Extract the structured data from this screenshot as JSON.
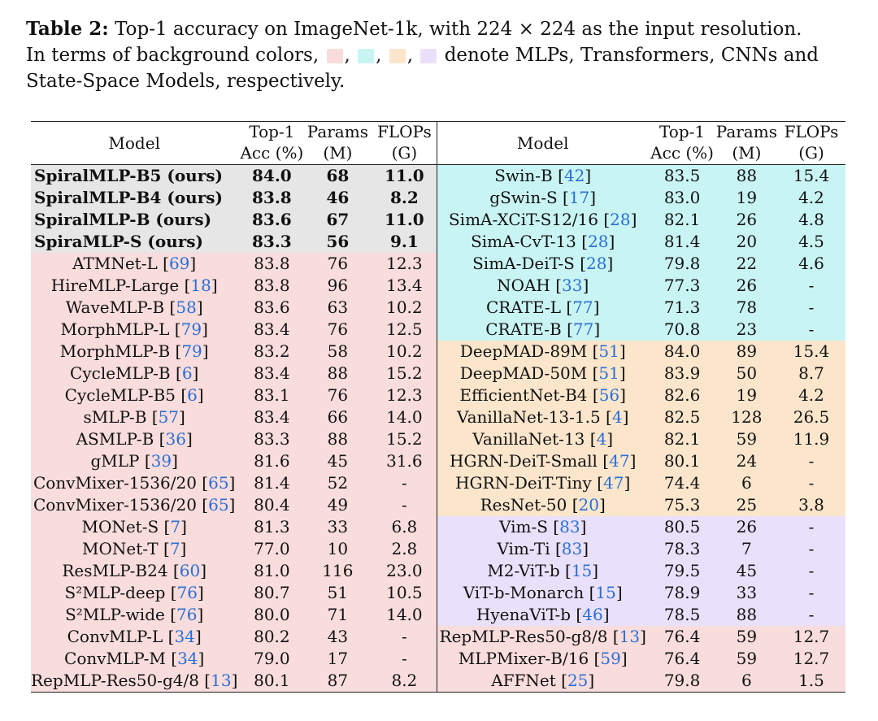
{
  "caption": {
    "label": "Table 2:",
    "line1": "Top-1 accuracy on ImageNet-1k, with 224 × 224 as the input resolution.",
    "line2a": "In terms of background colors,",
    "sep": ",",
    "line2b": "denote MLPs, Transformers, CNNs and",
    "line3": "State-Space Models, respectively."
  },
  "colors": {
    "mlp": "#f9dcdc",
    "transformer": "#c9f4f4",
    "cnn": "#fbe6cc",
    "ssm": "#e9e0fb",
    "ours": "#e6e6e6",
    "reference": "#2a6fd6"
  },
  "headers": {
    "model": "Model",
    "acc_top": "Top-1",
    "acc_bottom": "Acc (%)",
    "params_top": "Params",
    "params_bottom": "(M)",
    "flops_top": "FLOPs",
    "flops_bottom": "(G)"
  },
  "left_rows": [
    {
      "model": "SpiralMLP-B5 (ours)",
      "ref": "",
      "acc": "84.0",
      "params": "68",
      "flops": "11.0",
      "group": "ours"
    },
    {
      "model": "SpiralMLP-B4 (ours)",
      "ref": "",
      "acc": "83.8",
      "params": "46",
      "flops": "8.2",
      "group": "ours"
    },
    {
      "model": "SpiralMLP-B (ours)",
      "ref": "",
      "acc": "83.6",
      "params": "67",
      "flops": "11.0",
      "group": "ours"
    },
    {
      "model": "SpiraMLP-S (ours)",
      "ref": "",
      "acc": "83.3",
      "params": "56",
      "flops": "9.1",
      "group": "ours"
    },
    {
      "model": "ATMNet-L",
      "ref": "69",
      "acc": "83.8",
      "params": "76",
      "flops": "12.3",
      "group": "mlp"
    },
    {
      "model": "HireMLP-Large",
      "ref": "18",
      "acc": "83.8",
      "params": "96",
      "flops": "13.4",
      "group": "mlp"
    },
    {
      "model": "WaveMLP-B",
      "ref": "58",
      "acc": "83.6",
      "params": "63",
      "flops": "10.2",
      "group": "mlp"
    },
    {
      "model": "MorphMLP-L",
      "ref": "79",
      "acc": "83.4",
      "params": "76",
      "flops": "12.5",
      "group": "mlp"
    },
    {
      "model": "MorphMLP-B",
      "ref": "79",
      "acc": "83.2",
      "params": "58",
      "flops": "10.2",
      "group": "mlp"
    },
    {
      "model": "CycleMLP-B",
      "ref": "6",
      "acc": "83.4",
      "params": "88",
      "flops": "15.2",
      "group": "mlp"
    },
    {
      "model": "CycleMLP-B5",
      "ref": "6",
      "acc": "83.1",
      "params": "76",
      "flops": "12.3",
      "group": "mlp"
    },
    {
      "model": "sMLP-B",
      "ref": "57",
      "acc": "83.4",
      "params": "66",
      "flops": "14.0",
      "group": "mlp"
    },
    {
      "model": "ASMLP-B",
      "ref": "36",
      "acc": "83.3",
      "params": "88",
      "flops": "15.2",
      "group": "mlp"
    },
    {
      "model": "gMLP",
      "ref": "39",
      "acc": "81.6",
      "params": "45",
      "flops": "31.6",
      "group": "mlp"
    },
    {
      "model": "ConvMixer-1536/20",
      "ref": "65",
      "acc": "81.4",
      "params": "52",
      "flops": "-",
      "group": "mlp"
    },
    {
      "model": "ConvMixer-1536/20",
      "ref": "65",
      "acc": "80.4",
      "params": "49",
      "flops": "-",
      "group": "mlp"
    },
    {
      "model": "MONet-S",
      "ref": "7",
      "acc": "81.3",
      "params": "33",
      "flops": "6.8",
      "group": "mlp"
    },
    {
      "model": "MONet-T",
      "ref": "7",
      "acc": "77.0",
      "params": "10",
      "flops": "2.8",
      "group": "mlp"
    },
    {
      "model": "ResMLP-B24",
      "ref": "60",
      "acc": "81.0",
      "params": "116",
      "flops": "23.0",
      "group": "mlp"
    },
    {
      "model": "S²MLP-deep",
      "ref": "76",
      "acc": "80.7",
      "params": "51",
      "flops": "10.5",
      "group": "mlp"
    },
    {
      "model": "S²MLP-wide",
      "ref": "76",
      "acc": "80.0",
      "params": "71",
      "flops": "14.0",
      "group": "mlp"
    },
    {
      "model": "ConvMLP-L",
      "ref": "34",
      "acc": "80.2",
      "params": "43",
      "flops": "-",
      "group": "mlp"
    },
    {
      "model": "ConvMLP-M",
      "ref": "34",
      "acc": "79.0",
      "params": "17",
      "flops": "-",
      "group": "mlp"
    },
    {
      "model": "RepMLP-Res50-g4/8",
      "ref": "13",
      "acc": "80.1",
      "params": "87",
      "flops": "8.2",
      "group": "mlp"
    }
  ],
  "right_rows": [
    {
      "model": "Swin-B",
      "ref": "42",
      "acc": "83.5",
      "params": "88",
      "flops": "15.4",
      "group": "tr"
    },
    {
      "model": "gSwin-S",
      "ref": "17",
      "acc": "83.0",
      "params": "19",
      "flops": "4.2",
      "group": "tr"
    },
    {
      "model": "SimA-XCiT-S12/16",
      "ref": "28",
      "acc": "82.1",
      "params": "26",
      "flops": "4.8",
      "group": "tr"
    },
    {
      "model": "SimA-CvT-13",
      "ref": "28",
      "acc": "81.4",
      "params": "20",
      "flops": "4.5",
      "group": "tr"
    },
    {
      "model": "SimA-DeiT-S",
      "ref": "28",
      "acc": "79.8",
      "params": "22",
      "flops": "4.6",
      "group": "tr"
    },
    {
      "model": "NOAH",
      "ref": "33",
      "acc": "77.3",
      "params": "26",
      "flops": "-",
      "group": "tr"
    },
    {
      "model": "CRATE-L",
      "ref": "77",
      "acc": "71.3",
      "params": "78",
      "flops": "-",
      "group": "tr"
    },
    {
      "model": "CRATE-B",
      "ref": "77",
      "acc": "70.8",
      "params": "23",
      "flops": "-",
      "group": "tr"
    },
    {
      "model": "DeepMAD-89M",
      "ref": "51",
      "acc": "84.0",
      "params": "89",
      "flops": "15.4",
      "group": "cnn"
    },
    {
      "model": "DeepMAD-50M",
      "ref": "51",
      "acc": "83.9",
      "params": "50",
      "flops": "8.7",
      "group": "cnn"
    },
    {
      "model": "EfficientNet-B4",
      "ref": "56",
      "acc": "82.6",
      "params": "19",
      "flops": "4.2",
      "group": "cnn"
    },
    {
      "model": "VanillaNet-13-1.5",
      "ref": "4",
      "acc": "82.5",
      "params": "128",
      "flops": "26.5",
      "group": "cnn"
    },
    {
      "model": "VanillaNet-13",
      "ref": "4",
      "acc": "82.1",
      "params": "59",
      "flops": "11.9",
      "group": "cnn"
    },
    {
      "model": "HGRN-DeiT-Small",
      "ref": "47",
      "acc": "80.1",
      "params": "24",
      "flops": "-",
      "group": "cnn"
    },
    {
      "model": "HGRN-DeiT-Tiny",
      "ref": "47",
      "acc": "74.4",
      "params": "6",
      "flops": "-",
      "group": "cnn"
    },
    {
      "model": "ResNet-50",
      "ref": "20",
      "acc": "75.3",
      "params": "25",
      "flops": "3.8",
      "group": "cnn"
    },
    {
      "model": "Vim-S",
      "ref": "83",
      "acc": "80.5",
      "params": "26",
      "flops": "-",
      "group": "ssm"
    },
    {
      "model": "Vim-Ti",
      "ref": "83",
      "acc": "78.3",
      "params": "7",
      "flops": "-",
      "group": "ssm"
    },
    {
      "model": "M2-ViT-b",
      "ref": "15",
      "acc": "79.5",
      "params": "45",
      "flops": "-",
      "group": "ssm"
    },
    {
      "model": "ViT-b-Monarch",
      "ref": "15",
      "acc": "78.9",
      "params": "33",
      "flops": "-",
      "group": "ssm"
    },
    {
      "model": "HyenaViT-b",
      "ref": "46",
      "acc": "78.5",
      "params": "88",
      "flops": "-",
      "group": "ssm"
    },
    {
      "model": "RepMLP-Res50-g8/8",
      "ref": "13",
      "acc": "76.4",
      "params": "59",
      "flops": "12.7",
      "group": "mlp"
    },
    {
      "model": "MLPMixer-B/16",
      "ref": "59",
      "acc": "76.4",
      "params": "59",
      "flops": "12.7",
      "group": "mlp"
    },
    {
      "model": "AFFNet",
      "ref": "25",
      "acc": "79.8",
      "params": "6",
      "flops": "1.5",
      "group": "mlp"
    }
  ]
}
